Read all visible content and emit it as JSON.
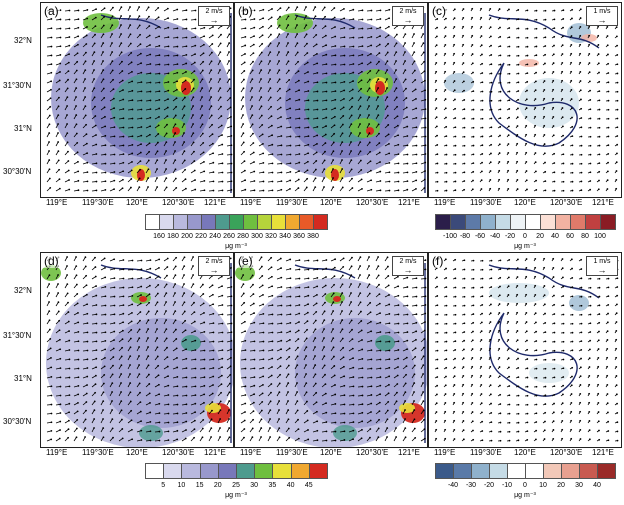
{
  "panels": [
    {
      "label": "(a)",
      "scale": "2 m/s"
    },
    {
      "label": "(b)",
      "scale": "2 m/s"
    },
    {
      "label": "(c)",
      "scale": "1 m/s"
    },
    {
      "label": "(d)",
      "scale": "2 m/s"
    },
    {
      "label": "(e)",
      "scale": "2 m/s"
    },
    {
      "label": "(f)",
      "scale": "1 m/s"
    }
  ],
  "lat_labels_top": [
    "32°N",
    "31°30'N",
    "31°N",
    "30°30'N"
  ],
  "lat_labels_bottom": [
    "32°N",
    "31°30'N",
    "31°N",
    "30°30'N"
  ],
  "lon_labels": [
    "119°E",
    "119°30'E",
    "120°E",
    "120°30'E",
    "121°E"
  ],
  "colorbars": {
    "o3_mean": {
      "labels": [
        "160",
        "180",
        "200",
        "220",
        "240",
        "260",
        "280",
        "300",
        "320",
        "340",
        "360",
        "380"
      ],
      "colors": [
        "#ffffff",
        "#d9d9ee",
        "#b9b9de",
        "#9898cc",
        "#7878ba",
        "#4e9b8e",
        "#3aa35a",
        "#6fbf3f",
        "#b5d43b",
        "#e8e03a",
        "#f0a830",
        "#e85a28",
        "#d42a20"
      ],
      "unit": "μg m⁻³"
    },
    "o3_diff": {
      "labels": [
        "-100",
        "-80",
        "-60",
        "-40",
        "-20",
        "0",
        "20",
        "40",
        "60",
        "80",
        "100"
      ],
      "colors": [
        "#2b1e4a",
        "#3b4a7a",
        "#5d7aa8",
        "#8fb1cc",
        "#c5dbe6",
        "#eef3f6",
        "#ffffff",
        "#fbe0d6",
        "#f2b2a2",
        "#e07a6a",
        "#c04040",
        "#8a1c24"
      ],
      "unit": "μg m⁻³"
    },
    "no2_mean": {
      "labels": [
        "5",
        "10",
        "15",
        "20",
        "25",
        "30",
        "35",
        "40",
        "45"
      ],
      "colors": [
        "#ffffff",
        "#d9d9ee",
        "#b9b9de",
        "#9898cc",
        "#7878ba",
        "#4e9b8e",
        "#6fbf3f",
        "#e8e03a",
        "#f0a830",
        "#d42a20"
      ],
      "unit": "μg m⁻³"
    },
    "no2_diff": {
      "labels": [
        "-40",
        "-30",
        "-20",
        "-10",
        "0",
        "10",
        "20",
        "30",
        "40"
      ],
      "colors": [
        "#3b5a8a",
        "#5a7aa8",
        "#8fb1cc",
        "#c5dbe6",
        "#ffffff",
        "#ffffff",
        "#f2c8b8",
        "#e8a090",
        "#c85a50",
        "#9a2a28"
      ],
      "unit": "μg m⁻³"
    }
  },
  "colors": {
    "coast": "#1f2a6b",
    "arrow": "#000000"
  }
}
